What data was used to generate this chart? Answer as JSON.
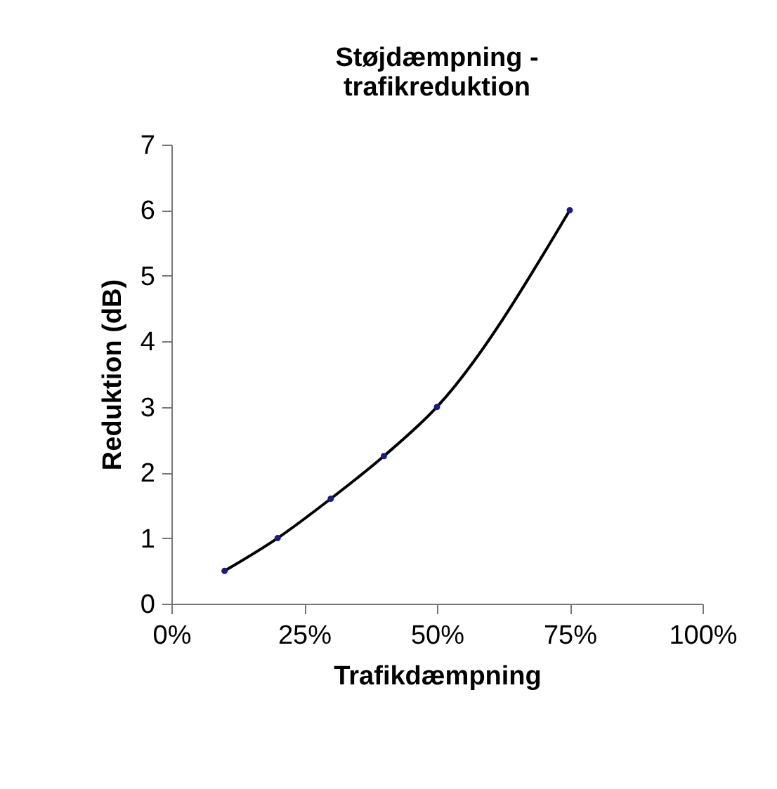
{
  "chart_data": {
    "type": "line",
    "title": [
      "Støjdæmpning -",
      "trafikreduktion"
    ],
    "xlabel": "Trafikdæmpning",
    "ylabel": "Reduktion (dB)",
    "x": [
      10,
      20,
      30,
      40,
      50,
      75
    ],
    "series": [
      {
        "color": "#000000",
        "values": [
          0.5,
          1,
          1.6,
          2.25,
          3,
          6
        ]
      }
    ],
    "xlim": [
      0,
      100
    ],
    "xticks": [
      {
        "value": 0,
        "label": "0%"
      },
      {
        "value": 25,
        "label": "25%"
      },
      {
        "value": 50,
        "label": "50%"
      },
      {
        "value": 75,
        "label": "75%"
      },
      {
        "value": 100,
        "label": "100%"
      }
    ],
    "ylim": [
      0,
      7
    ],
    "yticks": [
      0,
      1,
      2,
      3,
      4,
      5,
      6,
      7
    ],
    "marker": "circle",
    "line_style": "solid"
  }
}
